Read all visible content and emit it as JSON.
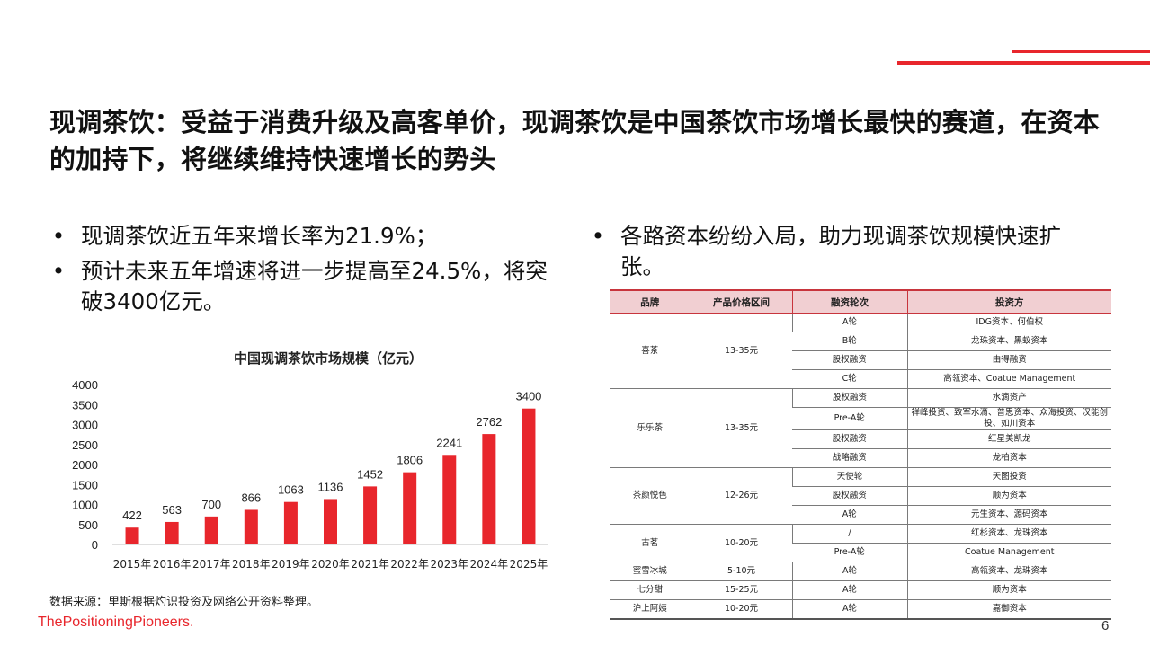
{
  "title": "现调茶饮：受益于消费升级及高客单价，现调茶饮是中国茶饮市场增长最快的赛道，在资本的加持下，将继续维持快速增长的势头",
  "left_bullets": [
    "现调茶饮近五年来增长率为21.9%；",
    "预计未来五年增速将进一步提高至24.5%，将突破3400亿元。"
  ],
  "right_bullets": [
    "各路资本纷纷入局，助力现调茶饮规模快速扩张。"
  ],
  "bullet_symbol": "•",
  "chart_data": {
    "type": "bar",
    "title": "中国现调茶饮市场规模（亿元）",
    "categories": [
      "2015年",
      "2016年",
      "2017年",
      "2018年",
      "2019年",
      "2020年",
      "2021年",
      "2022年",
      "2023年",
      "2024年",
      "2025年"
    ],
    "values": [
      422,
      563,
      700,
      866,
      1063,
      1136,
      1452,
      1806,
      2241,
      2762,
      3400
    ],
    "ylim": [
      0,
      4000
    ],
    "yticks": [
      0,
      500,
      1000,
      1500,
      2000,
      2500,
      3000,
      3500,
      4000
    ],
    "grid": false,
    "bar_color": "#e8262c"
  },
  "source": "数据来源：里斯根据灼识投资及网络公开资料整理。",
  "brand": "ThePositioningPioneers.",
  "page_number": "6",
  "table": {
    "headers": [
      "品牌",
      "产品价格区间",
      "融资轮次",
      "投资方"
    ],
    "groups": [
      {
        "brand": "喜茶",
        "price": "13-35元",
        "rounds": [
          {
            "round": "A轮",
            "investor": "IDG资本、何伯权"
          },
          {
            "round": "B轮",
            "investor": "龙珠资本、黑蚁资本"
          },
          {
            "round": "股权融资",
            "investor": "由得融资"
          },
          {
            "round": "C轮",
            "investor": "高瓴资本、Coatue Management"
          }
        ]
      },
      {
        "brand": "乐乐茶",
        "price": "13-35元",
        "rounds": [
          {
            "round": "股权融资",
            "investor": "水滴资产"
          },
          {
            "round": "Pre-A轮",
            "investor": "祥峰投资、致军水滴、普思资本、众海投资、汉能创投、如川资本"
          },
          {
            "round": "股权融资",
            "investor": "红星美凯龙"
          },
          {
            "round": "战略融资",
            "investor": "龙柏资本"
          }
        ]
      },
      {
        "brand": "茶颜悦色",
        "price": "12-26元",
        "rounds": [
          {
            "round": "天使轮",
            "investor": "天图投资"
          },
          {
            "round": "股权融资",
            "investor": "顺为资本"
          },
          {
            "round": "A轮",
            "investor": "元生资本、源码资本"
          }
        ]
      },
      {
        "brand": "古茗",
        "price": "10-20元",
        "rounds": [
          {
            "round": "/",
            "investor": "红杉资本、龙珠资本"
          },
          {
            "round": "Pre-A轮",
            "investor": "Coatue Management"
          }
        ]
      },
      {
        "brand": "蜜雪冰城",
        "price": "5-10元",
        "rounds": [
          {
            "round": "A轮",
            "investor": "高瓴资本、龙珠资本"
          }
        ]
      },
      {
        "brand": "七分甜",
        "price": "15-25元",
        "rounds": [
          {
            "round": "A轮",
            "investor": "顺为资本"
          }
        ]
      },
      {
        "brand": "沪上阿姨",
        "price": "10-20元",
        "rounds": [
          {
            "round": "A轮",
            "investor": "嘉御资本"
          }
        ]
      }
    ]
  }
}
